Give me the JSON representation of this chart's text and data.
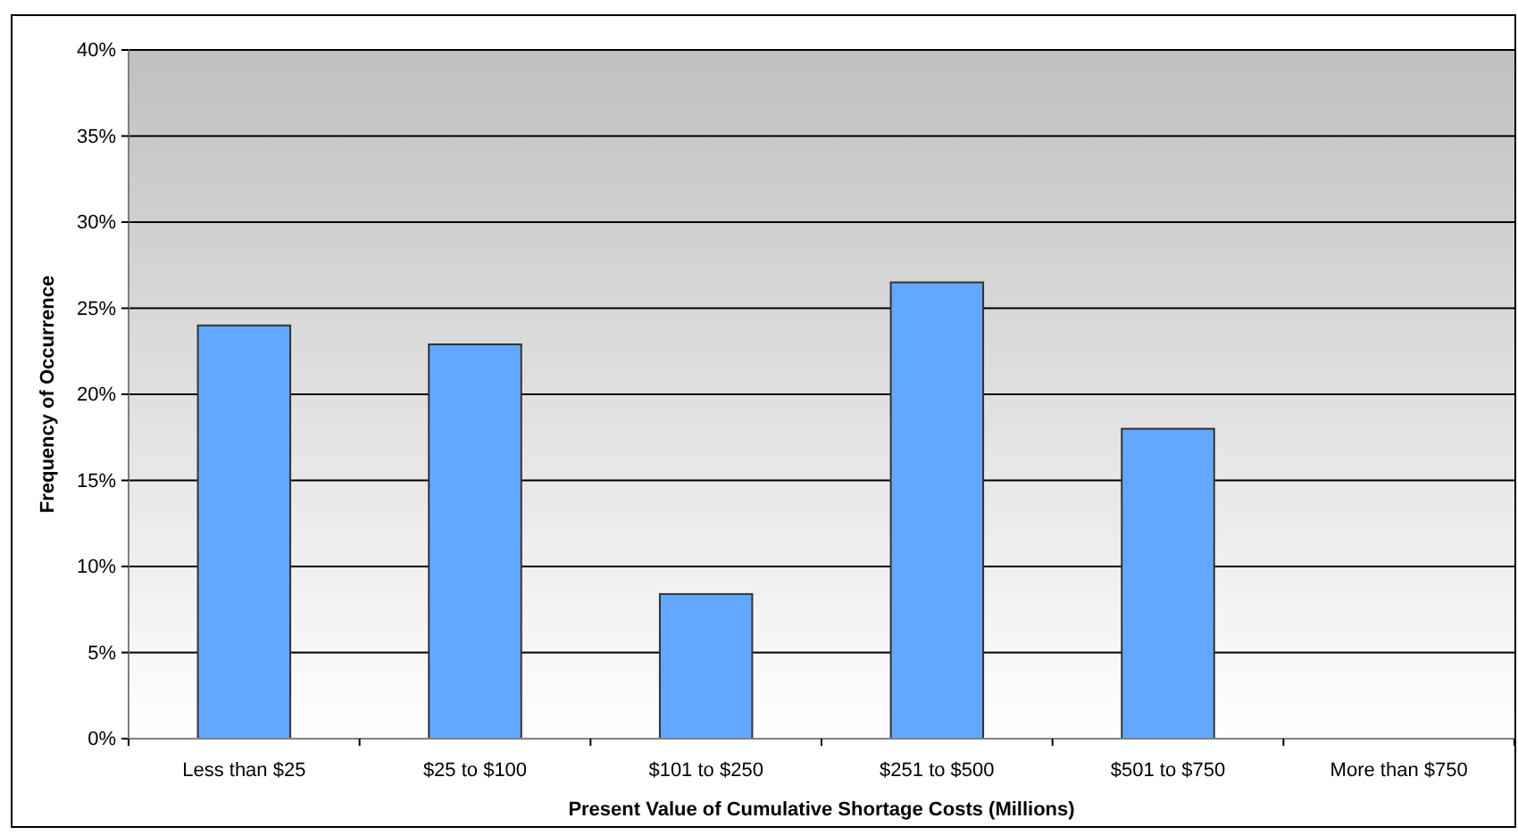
{
  "chart_data": {
    "type": "bar",
    "xlabel": "Present Value of Cumulative Shortage Costs (Millions)",
    "ylabel": "Frequency of Occurrence",
    "categories": [
      "Less than $25",
      "$25 to $100",
      "$101 to $250",
      "$251 to $500",
      "$501 to $750",
      "More than $750"
    ],
    "values": [
      24.0,
      22.9,
      8.4,
      26.5,
      18.0,
      0
    ],
    "color": "#63a8ff",
    "ylim": [
      0,
      40
    ],
    "yticks": [
      {
        "value": 0,
        "label": "0%"
      },
      {
        "value": 5,
        "label": "5%"
      },
      {
        "value": 10,
        "label": "10%"
      },
      {
        "value": 15,
        "label": "15%"
      },
      {
        "value": 20,
        "label": "20%"
      },
      {
        "value": 25,
        "label": "25%"
      },
      {
        "value": 30,
        "label": "30%"
      },
      {
        "value": 35,
        "label": "35%"
      },
      {
        "value": 40,
        "label": "40%"
      }
    ],
    "grid": "y"
  }
}
